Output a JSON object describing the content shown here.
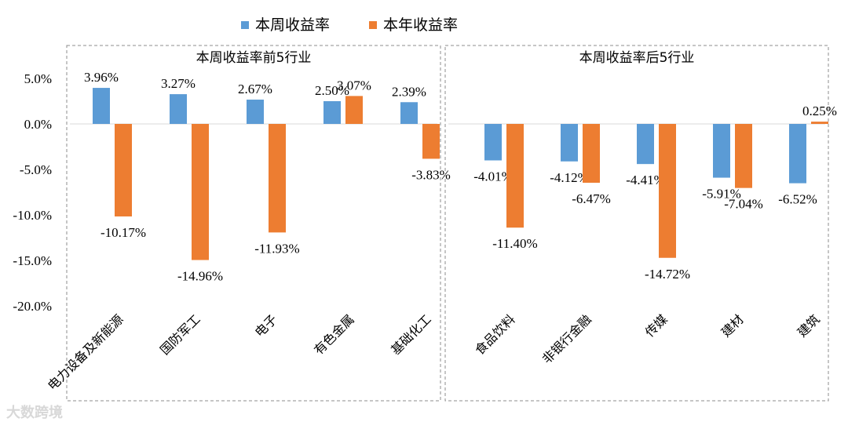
{
  "chart_data": {
    "type": "bar",
    "legend": {
      "position": "top",
      "series_labels": [
        "本周收益率",
        "本年收益率"
      ]
    },
    "y_ticks": [
      "5.0%",
      "0.0%",
      "-5.0%",
      "-10.0%",
      "-15.0%",
      "-20.0%"
    ],
    "ylim": [
      -20,
      5
    ],
    "colors": {
      "weekly": "#5b9bd5",
      "yearly": "#ed7d31"
    },
    "panels": [
      {
        "title": "本周收益率前5行业",
        "categories": [
          "电力设备及新能源",
          "国防军工",
          "电子",
          "有色金属",
          "基础化工"
        ],
        "series": [
          {
            "name": "本周收益率",
            "values": [
              3.96,
              3.27,
              2.67,
              2.5,
              2.39
            ],
            "labels": [
              "3.96%",
              "3.27%",
              "2.67%",
              "2.50%",
              "2.39%"
            ]
          },
          {
            "name": "本年收益率",
            "values": [
              -10.17,
              -14.96,
              -11.93,
              3.07,
              -3.83
            ],
            "labels": [
              "-10.17%",
              "-14.96%",
              "-11.93%",
              "3.07%",
              "-3.83%"
            ]
          }
        ]
      },
      {
        "title": "本周收益率后5行业",
        "categories": [
          "食品饮料",
          "非银行金融",
          "传媒",
          "建材",
          "建筑"
        ],
        "series": [
          {
            "name": "本周收益率",
            "values": [
              -4.01,
              -4.12,
              -4.41,
              -5.91,
              -6.52
            ],
            "labels": [
              "-4.01%",
              "-4.12%",
              "-4.41%",
              "-5.91%",
              "-6.52%"
            ]
          },
          {
            "name": "本年收益率",
            "values": [
              -11.4,
              -6.47,
              -14.72,
              -7.04,
              0.25
            ],
            "labels": [
              "-11.40%",
              "-6.47%",
              "-14.72%",
              "-7.04%",
              "0.25%"
            ]
          }
        ]
      }
    ]
  },
  "watermark": "大数跨境"
}
